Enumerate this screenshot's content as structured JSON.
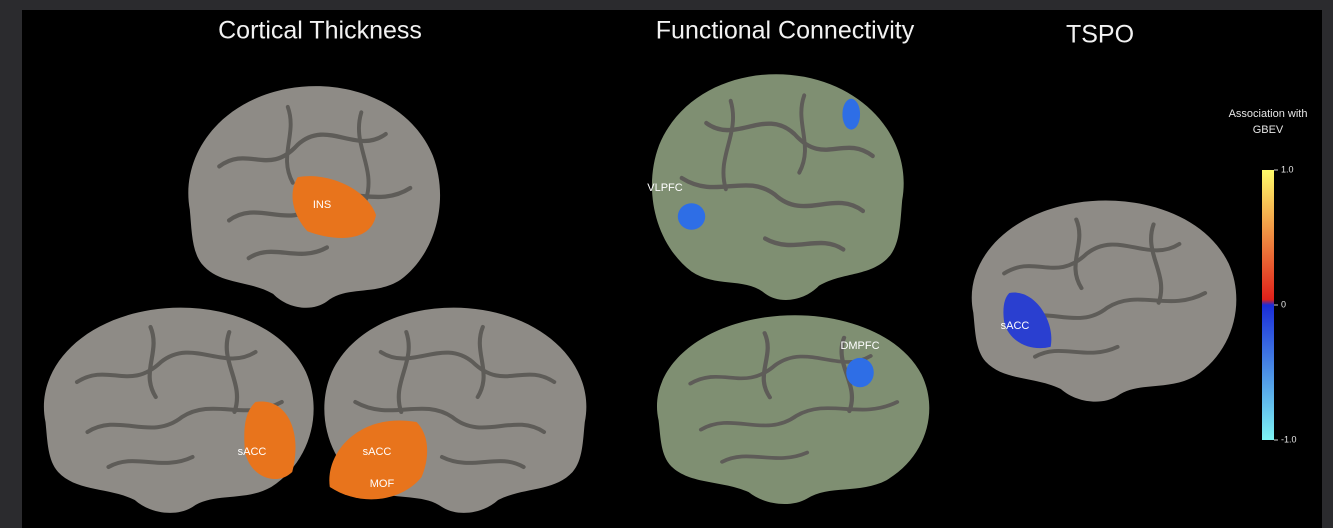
{
  "panels": [
    {
      "title": "Cortical Thickness",
      "regions": [
        "INS",
        "sACC",
        "sACC",
        "MOF"
      ]
    },
    {
      "title": "Functional Connectivity",
      "regions": [
        "VLPFC",
        "DMPFC"
      ]
    },
    {
      "title": "TSPO",
      "regions": [
        "sACC"
      ]
    }
  ],
  "colorbar": {
    "title": "Association with GBEV",
    "lim": [
      -1,
      1
    ],
    "ticks": [
      {
        "value": 1,
        "label": "1.0"
      },
      0,
      {
        "value": -1,
        "label": "-1.0"
      }
    ]
  }
}
